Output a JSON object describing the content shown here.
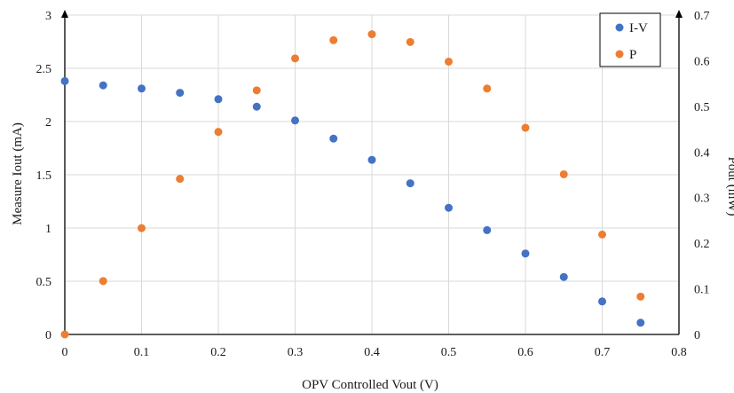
{
  "chart_data": {
    "type": "scatter",
    "title": "",
    "xlabel": "OPV Controlled Vout (V)",
    "ylabel": "Measure Iout (mA)",
    "y2label": "Pout (mW)",
    "xlim": [
      0,
      0.8
    ],
    "ylim": [
      0,
      3
    ],
    "y2lim": [
      0,
      0.7
    ],
    "x_ticks": [
      "0",
      "0.1",
      "0.2",
      "0.3",
      "0.4",
      "0.5",
      "0.6",
      "0.7",
      "0.8"
    ],
    "y_ticks": [
      "0",
      "0.5",
      "1",
      "1.5",
      "2",
      "2.5",
      "3"
    ],
    "y2_ticks": [
      "0",
      "0.1",
      "0.2",
      "0.3",
      "0.4",
      "0.5",
      "0.6",
      "0.7"
    ],
    "grid": true,
    "legend_position": "top-right",
    "series": [
      {
        "name": "I-V",
        "axis": "left",
        "color": "#4472C4",
        "x": [
          0,
          0.05,
          0.1,
          0.15,
          0.2,
          0.25,
          0.3,
          0.35,
          0.4,
          0.45,
          0.5,
          0.55,
          0.6,
          0.65,
          0.7,
          0.75
        ],
        "y": [
          2.38,
          2.34,
          2.31,
          2.27,
          2.21,
          2.14,
          2.01,
          1.84,
          1.64,
          1.42,
          1.19,
          0.98,
          0.76,
          0.54,
          0.31,
          0.11
        ]
      },
      {
        "name": "P",
        "axis": "right",
        "color": "#ED7D31",
        "x": [
          0,
          0.05,
          0.1,
          0.15,
          0.2,
          0.25,
          0.3,
          0.35,
          0.4,
          0.45,
          0.5,
          0.55,
          0.6,
          0.65,
          0.7,
          0.75
        ],
        "y": [
          0,
          0.117,
          0.233,
          0.341,
          0.444,
          0.535,
          0.605,
          0.645,
          0.658,
          0.641,
          0.598,
          0.539,
          0.453,
          0.351,
          0.219,
          0.083
        ]
      }
    ]
  }
}
